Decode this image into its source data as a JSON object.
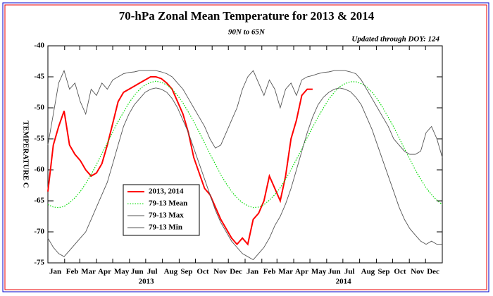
{
  "chart_data": {
    "type": "line",
    "title": "70-hPa Zonal Mean Temperature for 2013 & 2014",
    "subtitle": "90N to 65N",
    "annotation": "Updated through DOY: 124",
    "y_label": "TEMPERATURE C",
    "x": [
      0,
      10,
      20,
      30,
      40,
      50,
      60,
      70,
      80,
      90,
      100,
      110,
      120,
      130,
      140,
      150,
      160,
      170,
      180,
      190,
      200,
      210,
      220,
      230,
      240,
      250,
      260,
      270,
      280,
      290,
      300,
      310,
      320,
      330,
      340,
      350,
      360,
      370,
      380,
      390,
      400,
      410,
      420,
      430,
      440,
      450,
      460,
      470,
      480,
      490,
      500,
      510,
      520,
      530,
      540,
      550,
      560,
      570,
      580,
      590,
      600,
      610,
      620,
      630,
      640,
      650,
      660,
      670,
      680,
      690,
      700,
      710,
      720,
      730
    ],
    "xlim": [
      0,
      730
    ],
    "xticks": [
      {
        "value": 0,
        "label": "Jan"
      },
      {
        "value": 31,
        "label": "Feb"
      },
      {
        "value": 59,
        "label": "Mar"
      },
      {
        "value": 90,
        "label": "Apr"
      },
      {
        "value": 120,
        "label": "May"
      },
      {
        "value": 151,
        "label": "Jun"
      },
      {
        "value": 181,
        "label": "Jul"
      },
      {
        "value": 212,
        "label": "Aug"
      },
      {
        "value": 243,
        "label": "Sep"
      },
      {
        "value": 273,
        "label": "Oct"
      },
      {
        "value": 304,
        "label": "Nov"
      },
      {
        "value": 334,
        "label": "Dec"
      },
      {
        "value": 365,
        "label": "Jan"
      },
      {
        "value": 396,
        "label": "Feb"
      },
      {
        "value": 424,
        "label": "Mar"
      },
      {
        "value": 455,
        "label": "Apr"
      },
      {
        "value": 485,
        "label": "May"
      },
      {
        "value": 516,
        "label": "Jun"
      },
      {
        "value": 546,
        "label": "Jul"
      },
      {
        "value": 577,
        "label": "Aug"
      },
      {
        "value": 608,
        "label": "Sep"
      },
      {
        "value": 638,
        "label": "Oct"
      },
      {
        "value": 669,
        "label": "Nov"
      },
      {
        "value": 699,
        "label": "Dec"
      }
    ],
    "year_labels": [
      {
        "value": 182,
        "label": "2013"
      },
      {
        "value": 547,
        "label": "2014"
      }
    ],
    "ylim": [
      -75,
      -40
    ],
    "yticks": [
      -40,
      -45,
      -50,
      -55,
      -60,
      -65,
      -70,
      -75
    ],
    "series": [
      {
        "name": "2013, 2014",
        "color": "#ff0000",
        "style": "solid",
        "values": [
          -63.5,
          -56,
          -53,
          -50.5,
          -56,
          -57.5,
          -58.5,
          -60,
          -61,
          -60.5,
          -59,
          -56,
          -52.5,
          -49,
          -47.5,
          -47,
          -46.5,
          -46,
          -45.5,
          -45,
          -45,
          -45.3,
          -46,
          -47,
          -49,
          -51,
          -54,
          -58,
          -60.5,
          -63,
          -64,
          -66,
          -68,
          -69.5,
          -71,
          -72,
          -71,
          -72,
          -68,
          -67,
          -65,
          -61,
          -63,
          -65,
          -61,
          -55,
          -52,
          -48,
          -47,
          -47,
          null,
          null,
          null,
          null,
          null,
          null,
          null,
          null,
          null,
          null,
          null,
          null,
          null,
          null,
          null,
          null,
          null,
          null,
          null,
          null,
          null,
          null,
          null,
          null
        ]
      },
      {
        "name": "79-13 Mean",
        "color": "#00dd00",
        "style": "dotted",
        "values": [
          -65.6,
          -66.0,
          -66.1,
          -65.9,
          -65.3,
          -64.5,
          -63.5,
          -62.2,
          -60.8,
          -59.1,
          -57.4,
          -55.7,
          -53.9,
          -52.2,
          -50.7,
          -49.2,
          -48.0,
          -47.0,
          -46.3,
          -45.9,
          -45.7,
          -45.9,
          -46.3,
          -47.0,
          -48.0,
          -49.2,
          -50.7,
          -52.2,
          -53.9,
          -55.7,
          -57.4,
          -59.1,
          -60.8,
          -62.2,
          -63.5,
          -64.5,
          -65.3,
          -65.8,
          -66.1,
          -66.0,
          -65.6,
          -64.9,
          -64.0,
          -62.9,
          -61.5,
          -60.0,
          -58.3,
          -56.6,
          -54.8,
          -53.1,
          -51.5,
          -50.0,
          -48.6,
          -47.5,
          -46.6,
          -46.1,
          -45.8,
          -45.8,
          -46.1,
          -46.6,
          -47.5,
          -48.6,
          -50.0,
          -51.5,
          -53.1,
          -54.8,
          -56.6,
          -58.3,
          -60.0,
          -61.5,
          -62.9,
          -64.0,
          -64.9,
          -65.6
        ]
      },
      {
        "name": "79-13 Max",
        "color": "#555555",
        "style": "solid",
        "values": [
          -56,
          -51,
          -46,
          -44,
          -47,
          -46,
          -49,
          -51,
          -47,
          -48,
          -46,
          -47,
          -45.5,
          -45,
          -44.5,
          -44.3,
          -44.2,
          -44,
          -44,
          -44,
          -44,
          -44.2,
          -44.5,
          -45,
          -46,
          -47,
          -48.5,
          -50,
          -51.5,
          -53,
          -55,
          -56.5,
          -56,
          -54,
          -52,
          -50,
          -47,
          -45,
          -44,
          -46,
          -48,
          -45.5,
          -47,
          -50,
          -47,
          -46,
          -48,
          -45.5,
          -45,
          -44.8,
          -44.5,
          -44.3,
          -44.2,
          -44,
          -44,
          -44,
          -44.2,
          -44.5,
          -45.5,
          -47,
          -48.5,
          -50,
          -51.5,
          -53,
          -55,
          -56,
          -57,
          -57.5,
          -57.5,
          -57,
          -54,
          -53,
          -55,
          -58
        ]
      },
      {
        "name": "79-13 Min",
        "color": "#555555",
        "style": "solid",
        "values": [
          -71,
          -72.5,
          -73.5,
          -74,
          -73,
          -72,
          -71,
          -70,
          -68,
          -66,
          -64,
          -62,
          -59,
          -56,
          -53,
          -51,
          -49.5,
          -48.5,
          -47.5,
          -47,
          -46.8,
          -47,
          -47.5,
          -48.5,
          -50,
          -52,
          -54,
          -56.5,
          -59,
          -61.5,
          -64,
          -66.5,
          -68.5,
          -70,
          -71.5,
          -72.5,
          -73.5,
          -74,
          -74.5,
          -73.5,
          -72.5,
          -71,
          -69,
          -67.5,
          -65.5,
          -63,
          -60,
          -57,
          -54,
          -51.5,
          -49.5,
          -48.3,
          -47.5,
          -47,
          -46.8,
          -47,
          -47.4,
          -48.3,
          -49.5,
          -51.5,
          -53.5,
          -56,
          -58.5,
          -61,
          -63.5,
          -66,
          -68,
          -69.5,
          -70.5,
          -71.5,
          -72,
          -71.5,
          -72,
          -72
        ]
      }
    ]
  }
}
